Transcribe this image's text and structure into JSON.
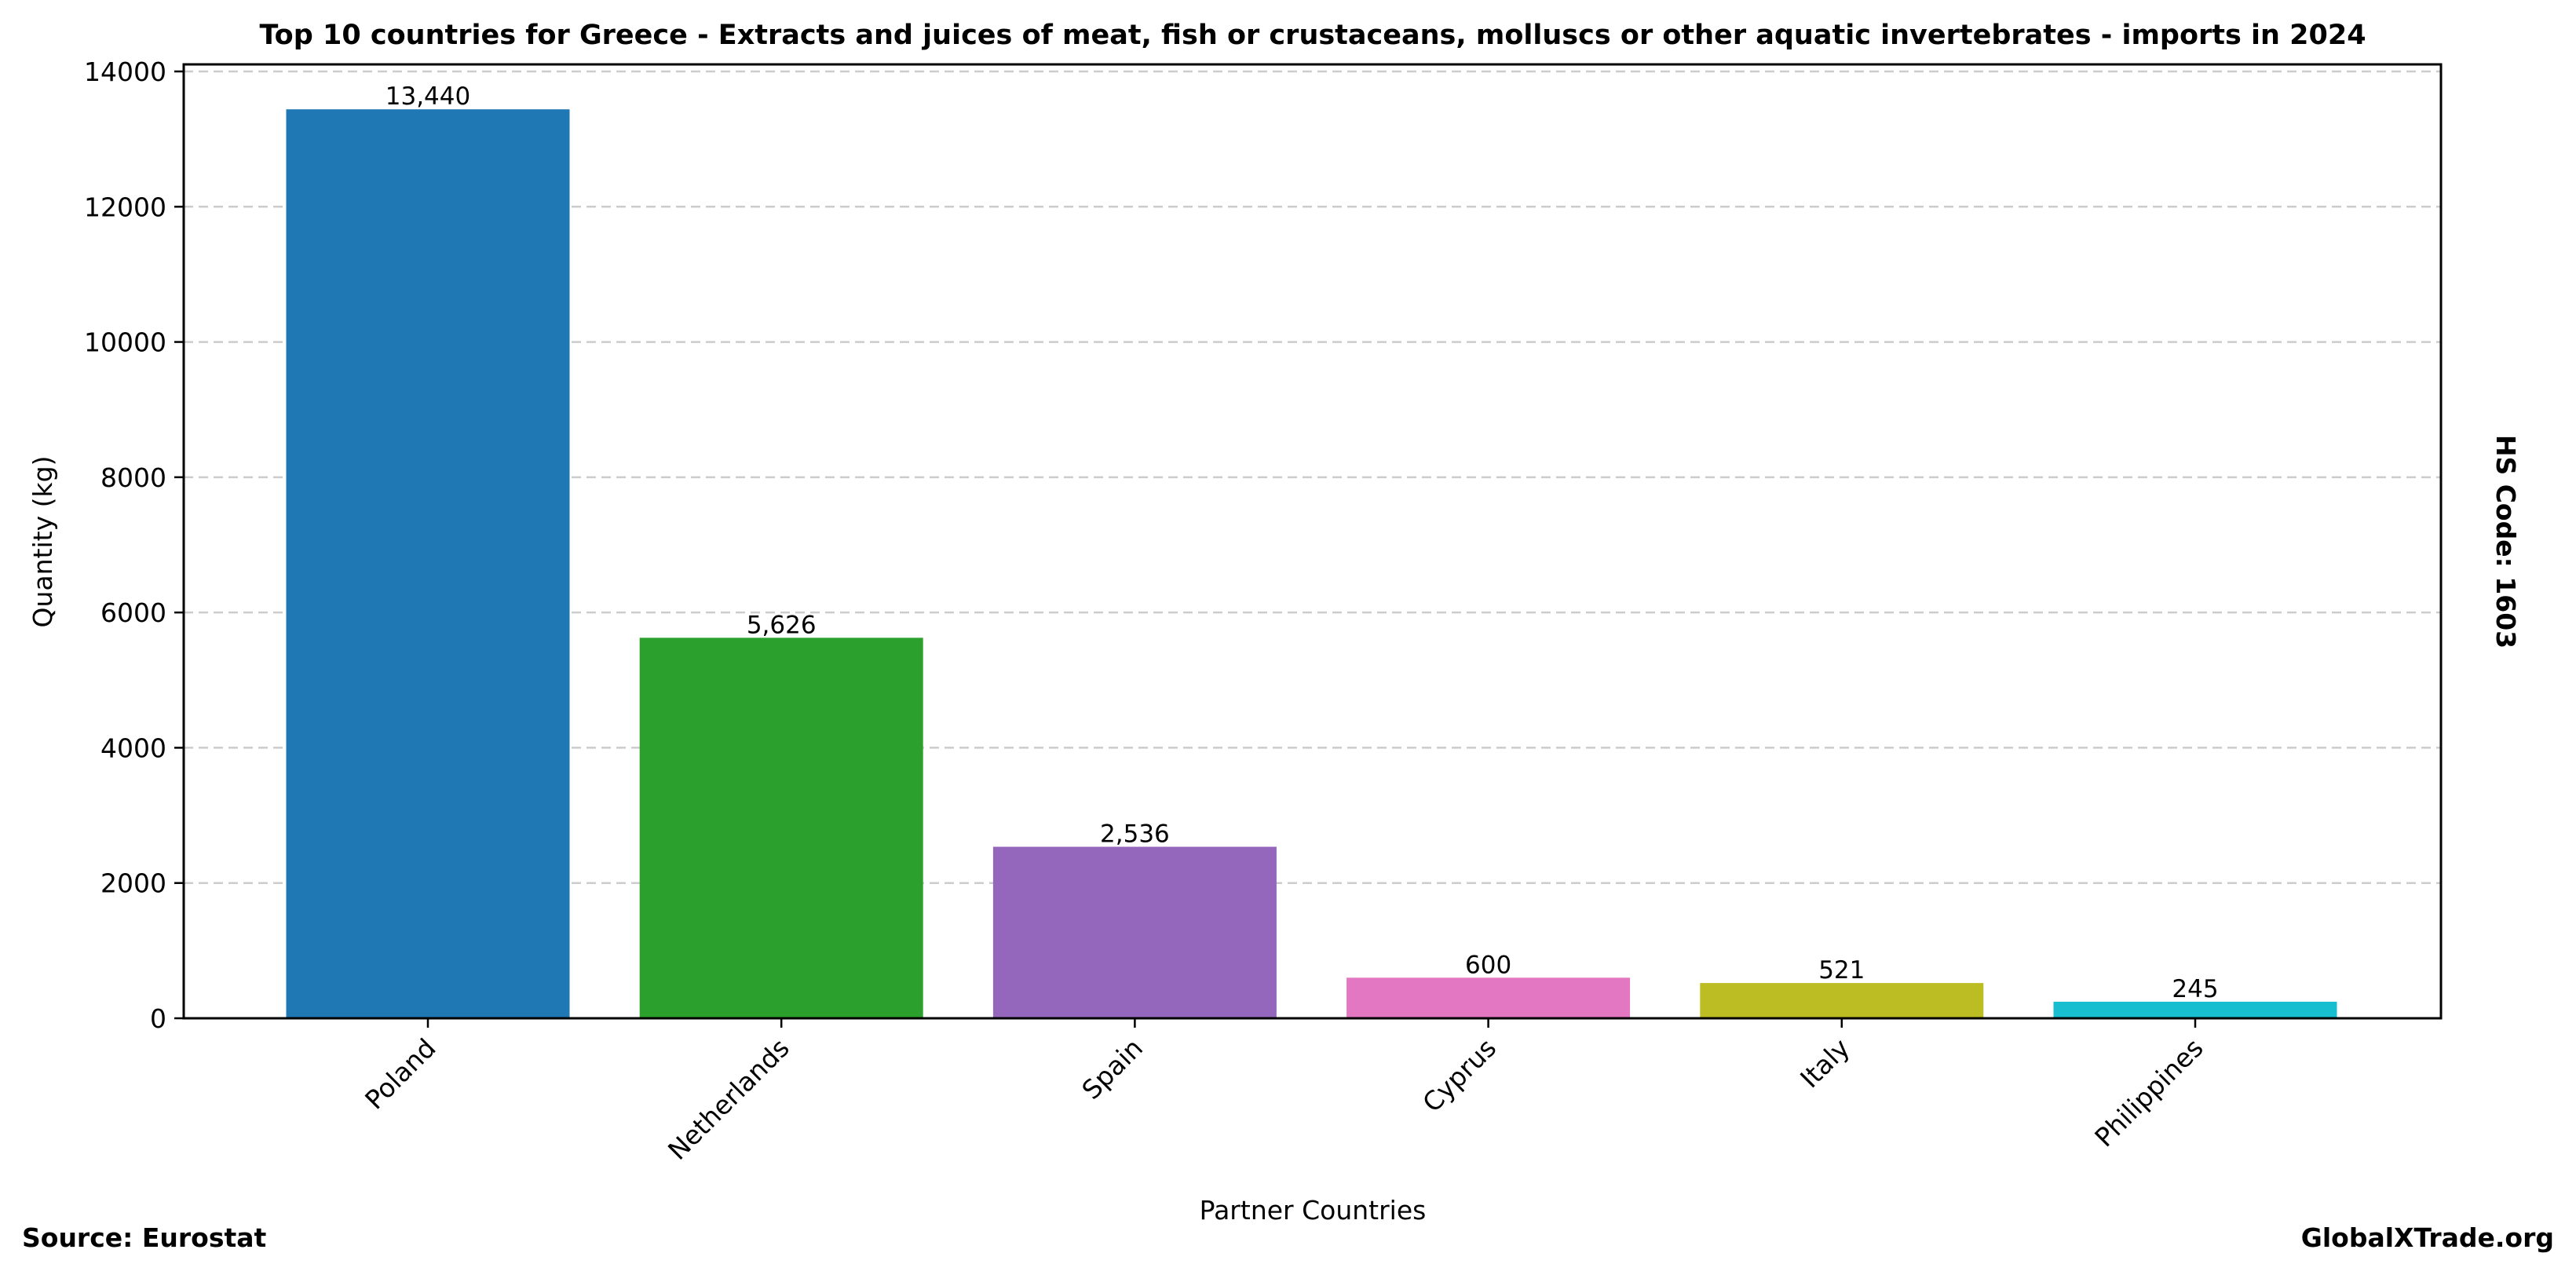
{
  "chart_data": {
    "type": "bar",
    "title": "Top 10 countries for Greece - Extracts and juices of meat, fish or crustaceans, molluscs or other aquatic invertebrates - imports in 2024",
    "xlabel": "Partner Countries",
    "ylabel": "Quantity (kg)",
    "ylim": [
      0,
      14000
    ],
    "yticks": [
      0,
      2000,
      4000,
      6000,
      8000,
      10000,
      12000,
      14000
    ],
    "grid": true,
    "categories": [
      "Poland",
      "Netherlands",
      "Spain",
      "Cyprus",
      "Italy",
      "Philippines"
    ],
    "values": [
      13440,
      5626,
      2536,
      600,
      521,
      245
    ],
    "data_labels": [
      "13,440",
      "5,626",
      "2,536",
      "600",
      "521",
      "245"
    ],
    "colors": [
      "#1f77b4",
      "#2ca02c",
      "#9467bd",
      "#e377c2",
      "#bcbd22",
      "#17becf"
    ],
    "side_label": "HS Code: 1603"
  },
  "footer": {
    "source": "Source: Eurostat",
    "brand": "GlobalXTrade.org"
  }
}
